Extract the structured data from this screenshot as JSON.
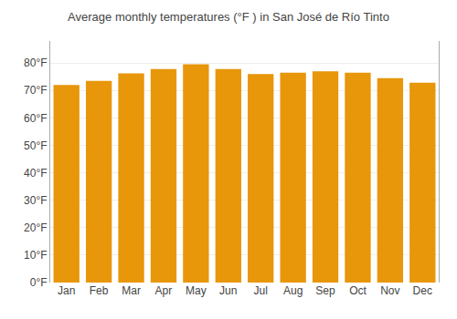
{
  "chart_data": {
    "type": "bar",
    "title": "Average monthly temperatures (°F ) in San José de Río Tinto",
    "categories": [
      "Jan",
      "Feb",
      "Mar",
      "Apr",
      "May",
      "Jun",
      "Jul",
      "Aug",
      "Sep",
      "Oct",
      "Nov",
      "Dec"
    ],
    "values": [
      72.0,
      73.5,
      76.2,
      77.8,
      79.5,
      77.8,
      76.0,
      76.5,
      77.0,
      76.5,
      74.5,
      72.8
    ],
    "color": "#E8960A",
    "ylim": [
      0,
      88
    ],
    "yticks": [
      {
        "value": 0,
        "label": "0°F"
      },
      {
        "value": 10,
        "label": "10°F"
      },
      {
        "value": 20,
        "label": "20°F"
      },
      {
        "value": 30,
        "label": "30°F"
      },
      {
        "value": 40,
        "label": "40°F"
      },
      {
        "value": 50,
        "label": "50°F"
      },
      {
        "value": 60,
        "label": "60°F"
      },
      {
        "value": 70,
        "label": "70°F"
      },
      {
        "value": 80,
        "label": "80°F"
      }
    ],
    "grid": true
  }
}
